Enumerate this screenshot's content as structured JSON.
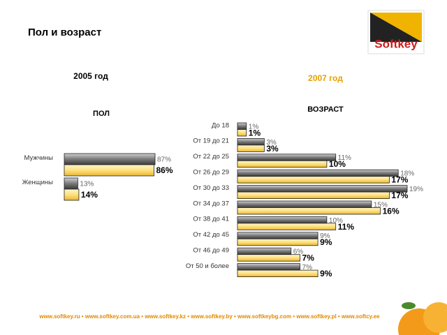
{
  "title": "Пол и возраст",
  "logo": "Softkey",
  "footer": "www.softkey.ru • www.softkey.com.ua • www.softkey.kz • www.softkey.by • www.softkeybg.com • www.softkey.pl • www.softcy.ee",
  "chart_data": [
    {
      "type": "hbar",
      "subtitle": "2005 год",
      "title": "ПОЛ",
      "categories": [
        "Мужчины",
        "Женщины"
      ],
      "series": [
        {
          "color": "#7a7a7a",
          "values": [
            87,
            13
          ],
          "value_labels": [
            "87%",
            "13%"
          ]
        },
        {
          "color": "#ffe080",
          "values": [
            86,
            14
          ],
          "value_labels": [
            "86%",
            "14%"
          ]
        }
      ]
    },
    {
      "type": "hbar",
      "subtitle": "2007 год",
      "title": "ВОЗРАСТ",
      "categories": [
        "До 18",
        "От 19 до 21",
        "От 22 до 25",
        "От 26 до 29",
        "От 30 до 33",
        "От 34 до 37",
        "От 38 до 41",
        "От 42 до 45",
        "От 46 до 49",
        "От 50 и более"
      ],
      "series": [
        {
          "color": "#7a7a7a",
          "values": [
            1,
            3,
            11,
            18,
            19,
            15,
            10,
            9,
            6,
            7
          ],
          "value_labels": [
            "1%",
            "3%",
            "11%",
            "18%",
            "19%",
            "15%",
            "10%",
            "9%",
            "6%",
            "7%"
          ]
        },
        {
          "color": "#ffe080",
          "values": [
            1,
            3,
            10,
            17,
            17,
            16,
            11,
            9,
            7,
            9
          ],
          "value_labels": [
            "1%",
            "3%",
            "10%",
            "17%",
            "17%",
            "16%",
            "11%",
            "9%",
            "7%",
            "9%"
          ]
        }
      ]
    }
  ]
}
